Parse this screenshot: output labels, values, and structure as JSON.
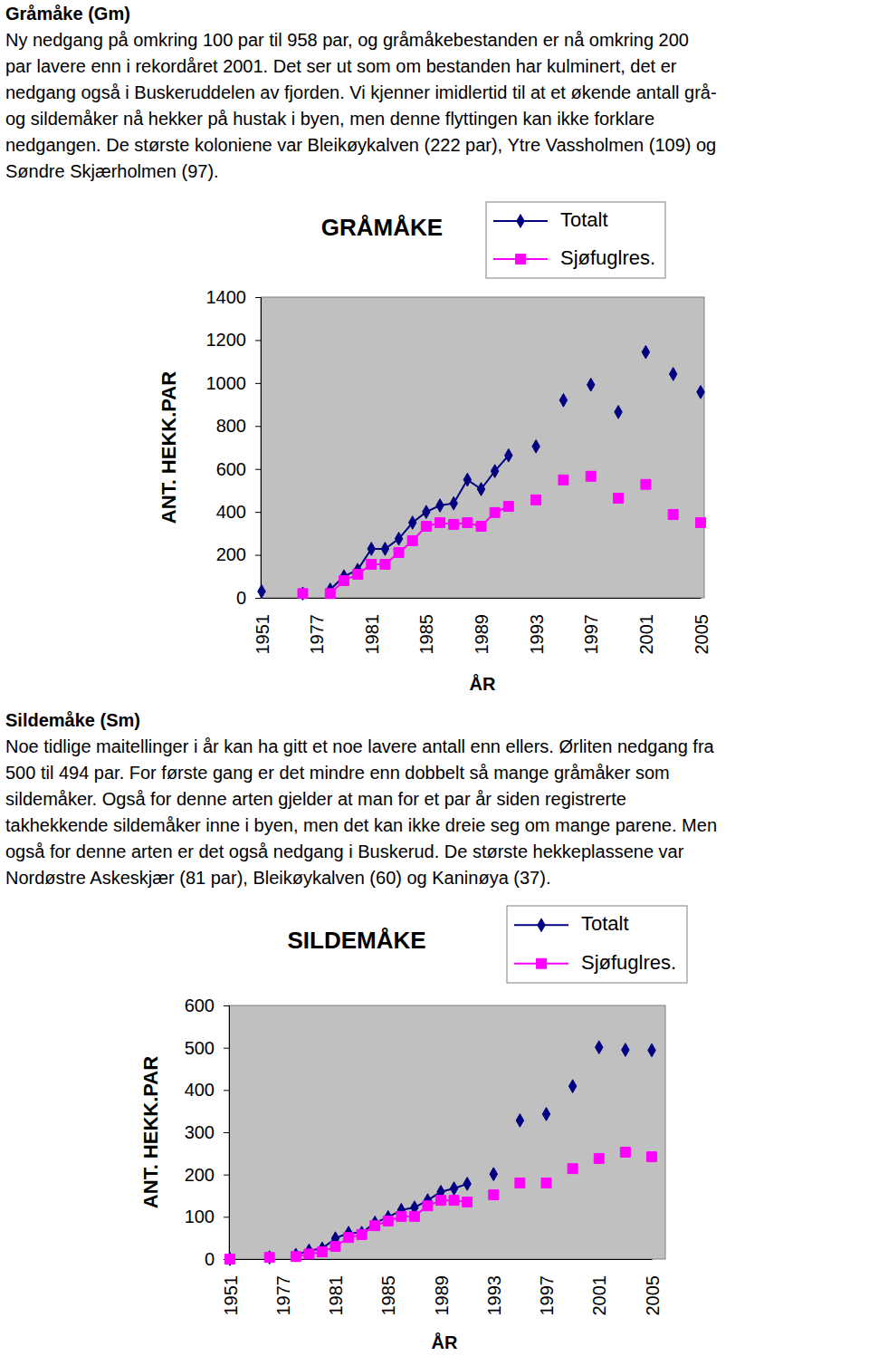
{
  "sections": [
    {
      "heading": "Gråmåke (Gm)",
      "lines": [
        "Ny nedgang på omkring 100 par til 958 par, og gråmåkebestanden er nå omkring 200",
        "par lavere enn i rekordåret 2001. Det ser ut som om bestanden har kulminert, det er",
        "nedgang også i Buskeruddelen av fjorden. Vi kjenner imidlertid til at et økende antall grå-",
        "og sildemåker nå hekker på hustak i byen, men denne flyttingen kan ikke forklare",
        "nedgangen. De største koloniene var Bleikøykalven (222 par), Ytre Vassholmen (109) og",
        "Søndre Skjærholmen (97)."
      ]
    },
    {
      "heading": "Sildemåke (Sm)",
      "lines": [
        "Noe tidlige maitellinger i år kan ha gitt et noe lavere antall enn ellers. Ørliten nedgang fra",
        "500 til 494 par. For første gang er det mindre enn dobbelt så mange gråmåker som",
        "sildemåker. Også for denne arten gjelder at man for et par år siden registrerte",
        "takhekkende sildemåker inne i byen, men det kan ikke dreie seg om mange parene. Men",
        "også for denne arten er det også nedgang i Buskerud. De største hekkeplassene var",
        "Nordøstre Askeskjær (81 par), Bleikøykalven (60) og Kaninøya (37)."
      ]
    }
  ],
  "chart_data": [
    {
      "type": "line",
      "title": "GRÅMÅKE",
      "xlabel": "ÅR",
      "ylabel": "ANT. HEKK.PAR",
      "categories": [
        "1951",
        null,
        null,
        null,
        "1977",
        null,
        null,
        null,
        "1981",
        null,
        null,
        null,
        "1985",
        null,
        null,
        null,
        "1989",
        null,
        null,
        null,
        "1993",
        null,
        null,
        null,
        "1997",
        null,
        null,
        null,
        "2001",
        null,
        null,
        null,
        "2005"
      ],
      "series": [
        {
          "name": "Totalt",
          "color": "#000080",
          "marker": "diamond",
          "values": [
            30,
            null,
            null,
            20,
            null,
            38,
            100,
            130,
            228,
            228,
            275,
            350,
            400,
            430,
            440,
            550,
            506,
            590,
            663,
            null,
            705,
            null,
            920,
            null,
            992,
            null,
            865,
            null,
            1144,
            null,
            1042,
            null,
            958
          ]
        },
        {
          "name": "Sjøfuglres.",
          "color": "#FF00FF",
          "marker": "square",
          "values": [
            null,
            null,
            null,
            20,
            null,
            20,
            80,
            110,
            156,
            156,
            211,
            266,
            333,
            350,
            342,
            350,
            333,
            397,
            426,
            null,
            456,
            null,
            549,
            null,
            566,
            null,
            464,
            null,
            528,
            null,
            388,
            null,
            350
          ]
        }
      ],
      "ylim": [
        0,
        1400
      ],
      "yticks": [
        0,
        200,
        400,
        600,
        800,
        1000,
        1200,
        1400
      ],
      "grid": false,
      "legend": "top-right"
    },
    {
      "type": "line",
      "title": "SILDEMÅKE",
      "xlabel": "ÅR",
      "ylabel": "ANT. HEKK.PAR",
      "categories": [
        "1951",
        null,
        null,
        null,
        "1977",
        null,
        null,
        null,
        "1981",
        null,
        null,
        null,
        "1985",
        null,
        null,
        null,
        "1989",
        null,
        null,
        null,
        "1993",
        null,
        null,
        null,
        "1997",
        null,
        null,
        null,
        "2001",
        null,
        null,
        null,
        "2005"
      ],
      "series": [
        {
          "name": "Totalt",
          "color": "#000080",
          "marker": "diamond",
          "values": [
            0,
            null,
            null,
            4,
            null,
            10,
            20,
            25,
            49,
            62,
            62,
            86,
            99,
            116,
            122,
            139,
            159,
            167,
            178,
            null,
            201,
            null,
            328,
            null,
            343,
            null,
            409,
            null,
            501,
            null,
            495,
            null,
            494
          ]
        },
        {
          "name": "Sjøfuglres.",
          "color": "#FF00FF",
          "marker": "square",
          "values": [
            0,
            null,
            null,
            4,
            null,
            6,
            12,
            17,
            30,
            51,
            58,
            79,
            90,
            101,
            101,
            126,
            139,
            139,
            135,
            null,
            152,
            null,
            180,
            null,
            180,
            null,
            214,
            null,
            238,
            null,
            253,
            null,
            242
          ]
        }
      ],
      "ylim": [
        0,
        600
      ],
      "yticks": [
        0,
        100,
        200,
        300,
        400,
        500,
        600
      ],
      "grid": false,
      "legend": "top-right"
    }
  ]
}
